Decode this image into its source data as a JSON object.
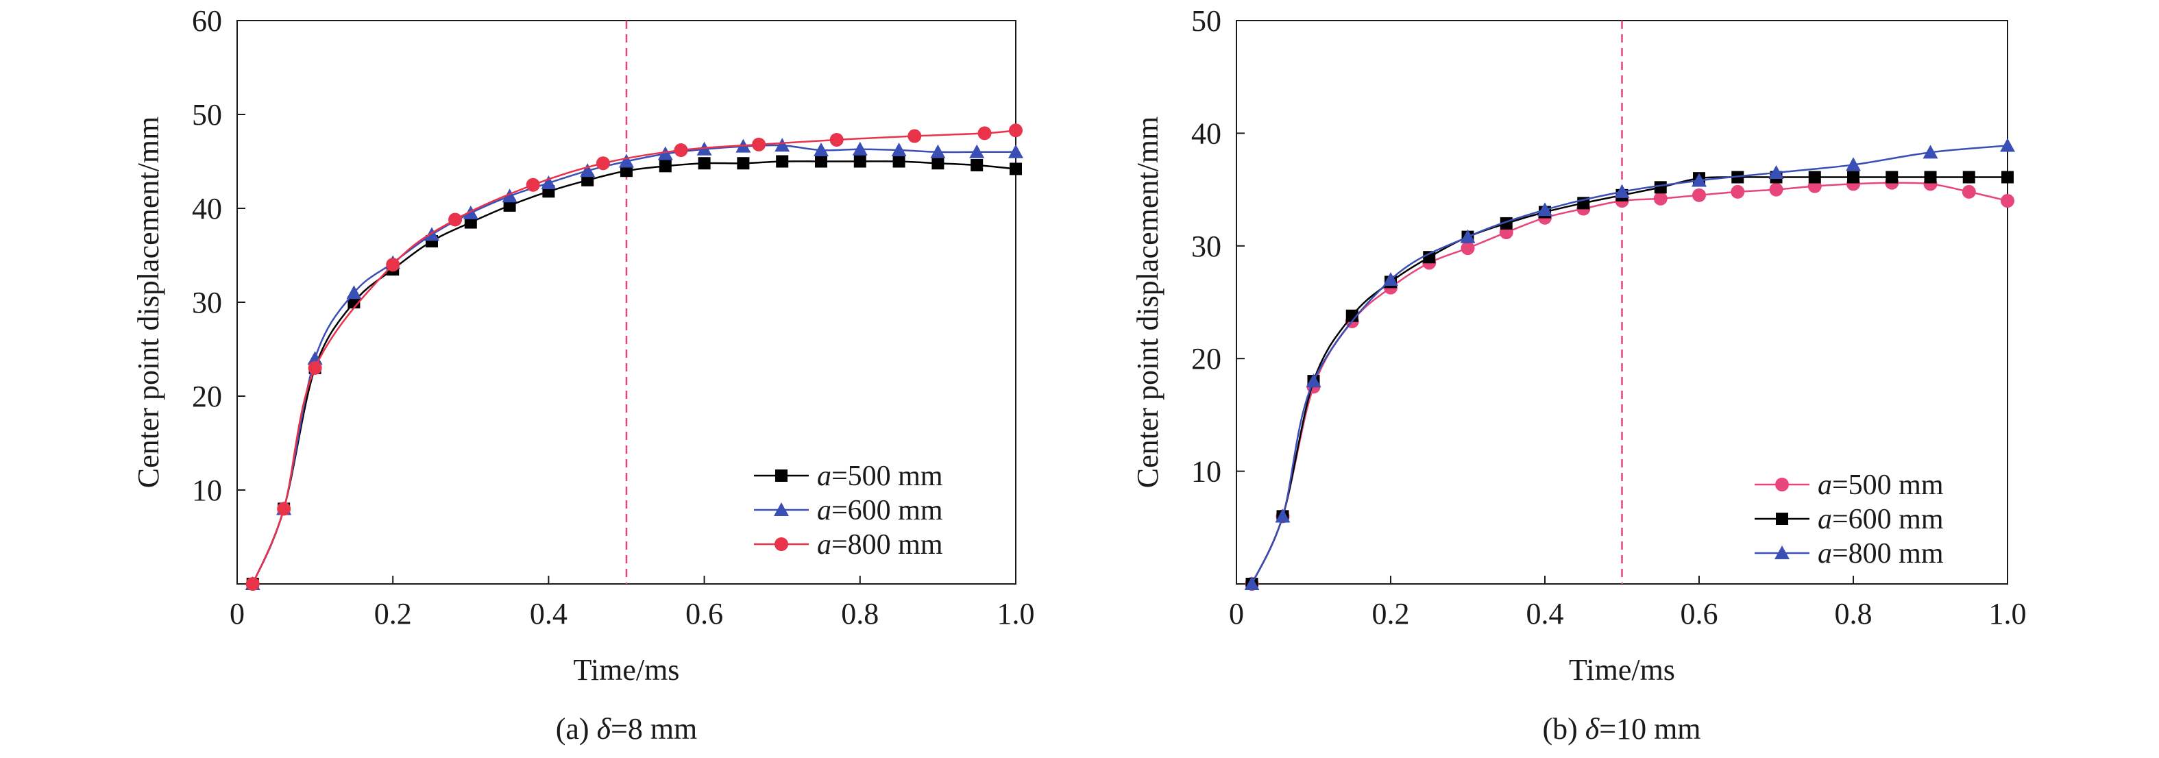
{
  "chart_data": [
    {
      "type": "line",
      "caption_prefix": "(a) ",
      "caption_symbol": "δ",
      "caption_rest": "=8 mm",
      "xlabel": "Time/ms",
      "ylabel": "Center point displacement/mm",
      "xlim": [
        0,
        1.0
      ],
      "ylim": [
        0,
        60
      ],
      "xticks": [
        "0",
        "0.2",
        "0.4",
        "0.6",
        "0.8",
        "1.0"
      ],
      "yticks": [
        "10",
        "20",
        "30",
        "40",
        "50",
        "60"
      ],
      "legend_position": "bottom-right",
      "reference_line_x": 0.5,
      "reference_line_color": "#e8457a",
      "series": [
        {
          "name_prefix": "a",
          "name_rest": "=500 mm",
          "color": "#000000",
          "marker": "square",
          "x": [
            0.02,
            0.06,
            0.1,
            0.15,
            0.2,
            0.25,
            0.3,
            0.35,
            0.4,
            0.45,
            0.5,
            0.55,
            0.6,
            0.65,
            0.7,
            0.75,
            0.8,
            0.85,
            0.9,
            0.95,
            1.0
          ],
          "y": [
            0,
            8,
            23,
            30,
            33.5,
            36.5,
            38.5,
            40.3,
            41.8,
            43,
            44,
            44.5,
            44.8,
            44.8,
            45,
            45,
            45,
            45,
            44.8,
            44.6,
            44.2
          ]
        },
        {
          "name_prefix": "a",
          "name_rest": "=600 mm",
          "color": "#3a4fb5",
          "marker": "triangle",
          "x": [
            0.02,
            0.06,
            0.1,
            0.15,
            0.2,
            0.25,
            0.3,
            0.35,
            0.4,
            0.45,
            0.5,
            0.55,
            0.6,
            0.65,
            0.7,
            0.75,
            0.8,
            0.85,
            0.9,
            0.95,
            1.0
          ],
          "y": [
            0,
            8,
            24,
            31,
            34.2,
            37.2,
            39.5,
            41.3,
            42.7,
            44,
            45,
            45.8,
            46.3,
            46.6,
            46.7,
            46.2,
            46.3,
            46.2,
            46,
            46,
            46
          ]
        },
        {
          "name_prefix": "a",
          "name_rest": "=800 mm",
          "color": "#e8334a",
          "marker": "circle",
          "x": [
            0.02,
            0.06,
            0.1,
            0.2,
            0.28,
            0.38,
            0.47,
            0.57,
            0.67,
            0.77,
            0.87,
            0.96,
            1.0
          ],
          "y": [
            0,
            8,
            23,
            34,
            38.8,
            42.5,
            44.8,
            46.2,
            46.8,
            47.3,
            47.7,
            48,
            48.3
          ]
        }
      ]
    },
    {
      "type": "line",
      "caption_prefix": "(b) ",
      "caption_symbol": "δ",
      "caption_rest": "=10 mm",
      "xlabel": "Time/ms",
      "ylabel": "Center point displacement/mm",
      "xlim": [
        0,
        1.0
      ],
      "ylim": [
        0,
        50
      ],
      "xticks": [
        "0",
        "0.2",
        "0.4",
        "0.6",
        "0.8",
        "1.0"
      ],
      "yticks": [
        "10",
        "20",
        "30",
        "40",
        "50"
      ],
      "legend_position": "bottom-right",
      "reference_line_x": 0.5,
      "reference_line_color": "#e8457a",
      "series": [
        {
          "name_prefix": "a",
          "name_rest": "=500 mm",
          "color": "#e8457a",
          "marker": "circle",
          "x": [
            0.02,
            0.06,
            0.1,
            0.15,
            0.2,
            0.25,
            0.3,
            0.35,
            0.4,
            0.45,
            0.5,
            0.55,
            0.6,
            0.65,
            0.7,
            0.75,
            0.8,
            0.85,
            0.9,
            0.95,
            1.0
          ],
          "y": [
            0,
            6,
            17.5,
            23.3,
            26.3,
            28.5,
            29.8,
            31.2,
            32.5,
            33.3,
            34,
            34.2,
            34.5,
            34.8,
            35,
            35.3,
            35.5,
            35.6,
            35.5,
            34.8,
            34
          ]
        },
        {
          "name_prefix": "a",
          "name_rest": "=600 mm",
          "color": "#000000",
          "marker": "square",
          "x": [
            0.02,
            0.06,
            0.1,
            0.15,
            0.2,
            0.25,
            0.3,
            0.35,
            0.4,
            0.45,
            0.5,
            0.55,
            0.6,
            0.65,
            0.7,
            0.75,
            0.8,
            0.85,
            0.9,
            0.95,
            1.0
          ],
          "y": [
            0,
            6,
            18,
            23.8,
            26.8,
            29,
            30.8,
            32,
            33,
            33.8,
            34.5,
            35.2,
            36,
            36.1,
            36.1,
            36.1,
            36.1,
            36.1,
            36.1,
            36.1,
            36.1
          ]
        },
        {
          "name_prefix": "a",
          "name_rest": "=800 mm",
          "color": "#3a4fb5",
          "marker": "triangle",
          "x": [
            0.02,
            0.06,
            0.1,
            0.2,
            0.3,
            0.4,
            0.5,
            0.6,
            0.7,
            0.8,
            0.9,
            1.0
          ],
          "y": [
            0,
            6,
            18,
            27,
            30.8,
            33.2,
            34.8,
            35.8,
            36.5,
            37.2,
            38.3,
            38.9
          ]
        }
      ]
    }
  ]
}
